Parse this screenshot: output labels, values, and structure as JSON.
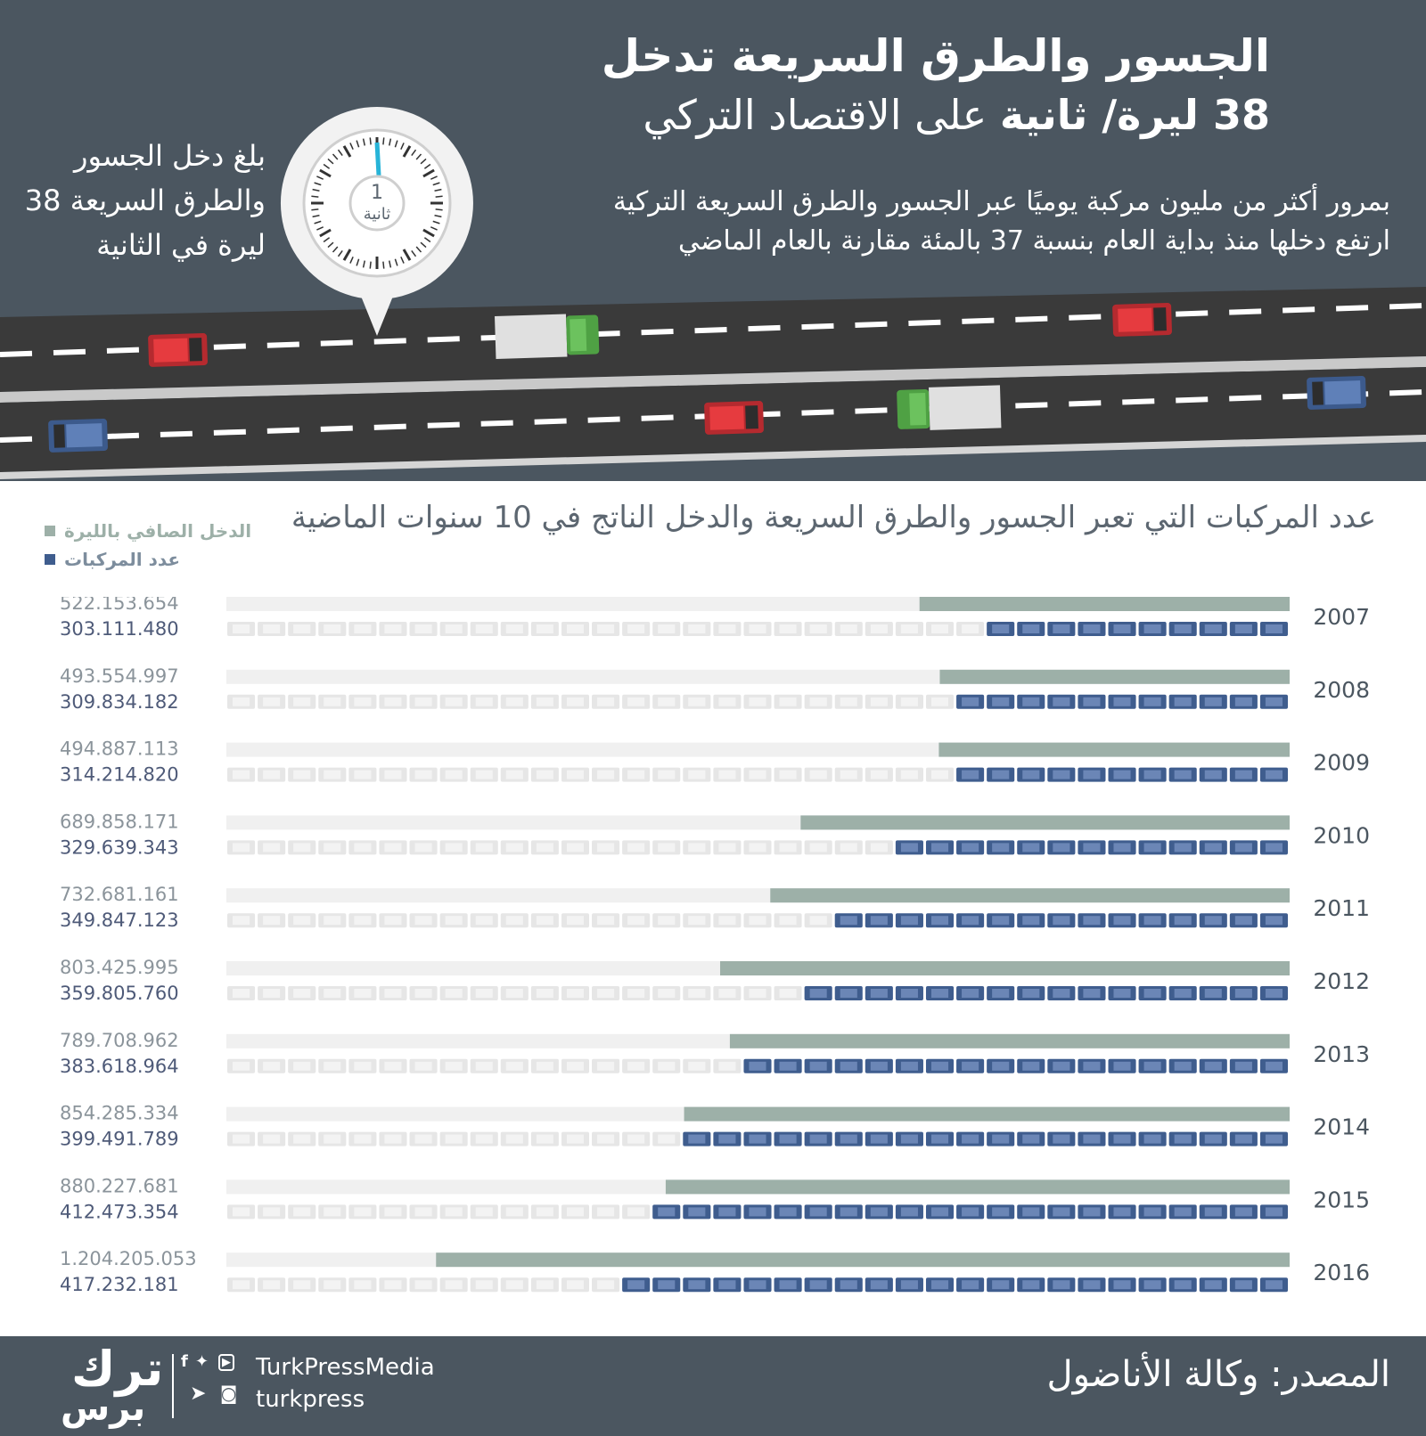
{
  "header": {
    "title_line1": "الجسور والطرق السريعة تدخل",
    "title_line2_bold": "38 ليرة/ ثانية",
    "title_line2_rest": " على الاقتصاد التركي",
    "subtitle_lines": [
      "بمرور أكثر من مليون مركبة يوميًا عبر الجسور والطرق السريعة التركية",
      "ارتفع دخلها منذ بداية العام بنسبة 37 بالمئة مقارنة بالعام الماضي"
    ],
    "side_note": "بلغ دخل الجسور والطرق السريعة 38 ليرة في الثانية",
    "clock_number": "1",
    "clock_label": "ثانية"
  },
  "chart_data": {
    "type": "bar",
    "title": "عدد المركبات التي تعبر الجسور والطرق السريعة والدخل الناتج في 10 سنوات الماضية",
    "categories": [
      "2007",
      "2008",
      "2009",
      "2010",
      "2011",
      "2012",
      "2013",
      "2014",
      "2015",
      "2016"
    ],
    "series": [
      {
        "name": "الدخل الصافي بالليرة",
        "color": "#9db0a8",
        "values": [
          522153654,
          493554997,
          494887113,
          689858171,
          732681161,
          803425995,
          789708962,
          854285334,
          880227681,
          1204205053
        ],
        "labels": [
          "522.153.654",
          "493.554.997",
          "494.887.113",
          "689.858.171",
          "732.681.161",
          "803.425.995",
          "789.708.962",
          "854.285.334",
          "880.227.681",
          "1.204.205.053"
        ]
      },
      {
        "name": "عدد المركبات",
        "color": "#3f5d8e",
        "values": [
          303111480,
          309834182,
          314214820,
          329639343,
          349847123,
          359805760,
          383618964,
          399491789,
          412473354,
          417232181
        ],
        "labels": [
          "303.111.480",
          "309.834.182",
          "314.214.820",
          "329.639.343",
          "349.847.123",
          "359.805.760",
          "383.618.964",
          "399.491.789",
          "412.473.354",
          "417.232.181"
        ]
      }
    ],
    "orientation": "horizontal",
    "bar_direction": "right-to-left",
    "legend_position": "top-left"
  },
  "colors": {
    "header_bg": "#4b5660",
    "income": "#9db0a8",
    "vehicles": "#3f5d8e",
    "track": "#f0f0f0",
    "label_income": "#8b949b",
    "label_vehicles": "#4e5a78"
  },
  "footer": {
    "source": "المصدر: وكالة الأناضول",
    "brand_name": "TurkPressMedia",
    "brand_handle": "turkpress",
    "logo_text_top": "ترك",
    "logo_text_bottom": "برس",
    "social_icons": [
      "facebook-icon",
      "twitter-icon",
      "youtube-icon",
      "telegram-icon",
      "instagram-icon"
    ]
  }
}
